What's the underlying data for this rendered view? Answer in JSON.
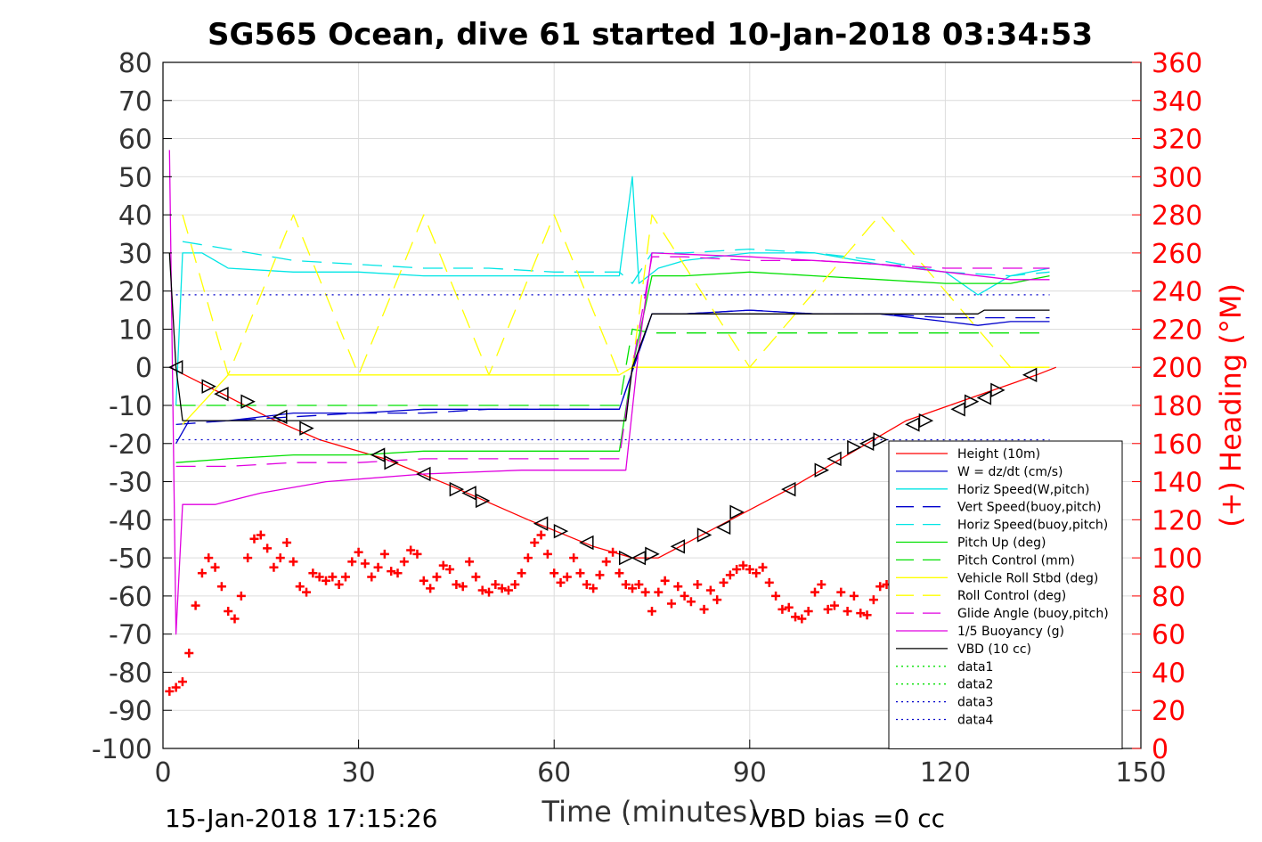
{
  "chart_data": {
    "type": "line",
    "title": "SG565 Ocean, dive 61 started 10-Jan-2018 03:34:53",
    "xlabel": "Time (minutes)",
    "ylabel": "",
    "y2label": "(+) Heading (°M)",
    "xlim": [
      0,
      150
    ],
    "ylim": [
      -100,
      80
    ],
    "y2lim": [
      0,
      360
    ],
    "xticks": [
      0,
      30,
      60,
      90,
      120,
      150
    ],
    "yticks": [
      -100,
      -90,
      -80,
      -70,
      -60,
      -50,
      -40,
      -30,
      -20,
      -10,
      0,
      10,
      20,
      30,
      40,
      50,
      60,
      70,
      80
    ],
    "y2ticks": [
      0,
      20,
      40,
      60,
      80,
      100,
      120,
      140,
      160,
      180,
      200,
      220,
      240,
      260,
      280,
      300,
      320,
      340,
      360
    ],
    "grid": true,
    "legend_position": "bottom-right",
    "footer_left": "15-Jan-2018 17:15:26",
    "footer_right": "VBD bias =0 cc",
    "series": [
      {
        "name": "Height (10m)",
        "color": "#ff0000",
        "style": "solid",
        "x": [
          1,
          8,
          16,
          24,
          34,
          44,
          56,
          66,
          72,
          76,
          86,
          96,
          106,
          114,
          124,
          134,
          137
        ],
        "y": [
          0,
          -6,
          -13,
          -19,
          -24,
          -31,
          -40,
          -47,
          -50,
          -50,
          -41,
          -32,
          -22,
          -14,
          -8,
          -2,
          0
        ]
      },
      {
        "name": "W = dz/dt (cm/s)",
        "color": "#0000cc",
        "style": "solid",
        "x": [
          2,
          4,
          10,
          20,
          30,
          40,
          50,
          60,
          70,
          72,
          75,
          80,
          90,
          100,
          110,
          120,
          125,
          130,
          136
        ],
        "y": [
          -20,
          -14,
          -14,
          -12,
          -12,
          -11,
          -11,
          -11,
          -11,
          -1,
          14,
          14,
          15,
          14,
          14,
          12,
          11,
          12,
          12
        ]
      },
      {
        "name": "Horiz Speed(W,pitch)",
        "color": "#00e5e5",
        "style": "solid",
        "x": [
          2,
          3,
          6,
          10,
          20,
          30,
          40,
          50,
          60,
          70,
          72,
          73,
          76,
          80,
          90,
          100,
          110,
          120,
          125,
          130,
          136
        ],
        "y": [
          -10,
          30,
          30,
          26,
          25,
          25,
          24,
          24,
          24,
          24,
          50,
          22,
          26,
          28,
          30,
          30,
          27,
          25,
          19,
          24,
          26
        ]
      },
      {
        "name": "Vert Speed(buoy,pitch)",
        "color": "#0000cc",
        "style": "dashed",
        "x": [
          2,
          10,
          20,
          30,
          40,
          50,
          60,
          70,
          72,
          75,
          80,
          90,
          100,
          110,
          120,
          130,
          136
        ],
        "y": [
          -15,
          -14,
          -13,
          -12,
          -12,
          -11,
          -11,
          -11,
          -1,
          14,
          14,
          15,
          14,
          14,
          13,
          13,
          13
        ]
      },
      {
        "name": "Horiz Speed(buoy,pitch)",
        "color": "#00e5e5",
        "style": "dashed",
        "x": [
          3,
          10,
          20,
          30,
          40,
          50,
          60,
          70,
          72,
          75,
          80,
          90,
          100,
          110,
          120,
          130,
          136
        ],
        "y": [
          33,
          31,
          28,
          27,
          26,
          26,
          25,
          25,
          22,
          30,
          30,
          31,
          30,
          28,
          25,
          24,
          25
        ]
      },
      {
        "name": "Pitch Up (deg)",
        "color": "#00e000",
        "style": "solid",
        "x": [
          2,
          10,
          20,
          30,
          40,
          50,
          60,
          70,
          72,
          75,
          80,
          90,
          100,
          110,
          120,
          130,
          136
        ],
        "y": [
          -25,
          -24,
          -23,
          -23,
          -22,
          -22,
          -22,
          -22,
          0,
          24,
          24,
          25,
          24,
          23,
          22,
          22,
          24
        ]
      },
      {
        "name": "Pitch Control (mm)",
        "color": "#00e000",
        "style": "dashed",
        "x": [
          2,
          10,
          30,
          50,
          70,
          72,
          75,
          90,
          110,
          130,
          136
        ],
        "y": [
          -10,
          -10,
          -10,
          -10,
          -10,
          10,
          9,
          9,
          9,
          9,
          9
        ]
      },
      {
        "name": "Vehicle Roll Stbd (deg)",
        "color": "#ffff00",
        "style": "solid",
        "x": [
          3,
          10,
          20,
          30,
          40,
          50,
          60,
          70,
          72,
          75,
          80,
          90,
          100,
          110,
          120,
          130,
          136
        ],
        "y": [
          -15,
          -2,
          -2,
          -2,
          -2,
          -2,
          -2,
          -2,
          0,
          0,
          0,
          0,
          0,
          0,
          0,
          0,
          0
        ]
      },
      {
        "name": "Roll Control (deg)",
        "color": "#ffff00",
        "style": "dashed",
        "x": [
          3,
          10,
          20,
          30,
          40,
          50,
          60,
          70,
          72,
          75,
          90,
          110,
          130,
          136
        ],
        "y": [
          40,
          -2,
          40,
          -2,
          40,
          -2,
          40,
          -2,
          0,
          40,
          0,
          40,
          0,
          0
        ]
      },
      {
        "name": "Glide Angle (buoy,pitch)",
        "color": "#e000e0",
        "style": "dashed",
        "x": [
          2,
          10,
          20,
          30,
          40,
          50,
          60,
          70,
          72,
          75,
          80,
          90,
          100,
          110,
          120,
          130,
          136
        ],
        "y": [
          -26,
          -26,
          -25,
          -25,
          -24,
          -24,
          -24,
          -24,
          0,
          29,
          29,
          28,
          28,
          27,
          26,
          26,
          26
        ]
      },
      {
        "name": "1/5 Buoyancy (g)",
        "color": "#e000e0",
        "style": "solid",
        "x": [
          1,
          2,
          3,
          8,
          15,
          25,
          40,
          55,
          70,
          71,
          73,
          75,
          90,
          110,
          130,
          136
        ],
        "y": [
          57,
          -70,
          -36,
          -36,
          -33,
          -30,
          -28,
          -27,
          -27,
          -27,
          5,
          30,
          29,
          27,
          23,
          23
        ]
      },
      {
        "name": "VBD (10 cc)",
        "color": "#000000",
        "style": "solid",
        "x": [
          1,
          2,
          3,
          20,
          40,
          60,
          70,
          71,
          72,
          75,
          80,
          100,
          110,
          125,
          126,
          136
        ],
        "y": [
          30,
          0,
          -14,
          -14,
          -14,
          -14,
          -14,
          -14,
          0,
          14,
          14,
          14,
          14,
          14,
          15,
          15
        ]
      },
      {
        "name": "data1",
        "color": "#00e000",
        "style": "dotted",
        "x": [],
        "y": []
      },
      {
        "name": "data2",
        "color": "#00e000",
        "style": "dotted",
        "x": [],
        "y": []
      },
      {
        "name": "data3",
        "color": "#0000cc",
        "style": "dotted",
        "x": [
          2,
          136
        ],
        "y": [
          19,
          19
        ]
      },
      {
        "name": "data4",
        "color": "#0000cc",
        "style": "dotted",
        "x": [
          2,
          136
        ],
        "y": [
          -19,
          -19
        ]
      }
    ],
    "heading": {
      "color": "#ff0000",
      "marker": "+",
      "axis": "right",
      "x": [
        1,
        2,
        3,
        4,
        5,
        6,
        7,
        8,
        9,
        10,
        11,
        12,
        13,
        14,
        15,
        16,
        17,
        18,
        19,
        20,
        21,
        22,
        23,
        24,
        25,
        26,
        27,
        28,
        29,
        30,
        31,
        32,
        33,
        34,
        35,
        36,
        37,
        38,
        39,
        40,
        41,
        42,
        43,
        44,
        45,
        46,
        47,
        48,
        49,
        50,
        51,
        52,
        53,
        54,
        55,
        56,
        57,
        58,
        59,
        60,
        61,
        62,
        63,
        64,
        65,
        66,
        67,
        68,
        69,
        70,
        71,
        72,
        73,
        74,
        75,
        76,
        77,
        78,
        79,
        80,
        81,
        82,
        83,
        84,
        85,
        86,
        87,
        88,
        89,
        90,
        91,
        92,
        93,
        94,
        95,
        96,
        97,
        98,
        99,
        100,
        101,
        102,
        103,
        104,
        105,
        106,
        107,
        108,
        109,
        110,
        111
      ],
      "y": [
        30,
        32,
        35,
        50,
        75,
        92,
        100,
        95,
        85,
        72,
        68,
        80,
        100,
        110,
        112,
        105,
        95,
        100,
        108,
        98,
        85,
        82,
        92,
        90,
        88,
        90,
        86,
        90,
        98,
        103,
        97,
        90,
        95,
        102,
        93,
        92,
        98,
        104,
        102,
        88,
        84,
        90,
        96,
        94,
        86,
        85,
        98,
        90,
        83,
        82,
        86,
        84,
        83,
        86,
        92,
        100,
        108,
        112,
        102,
        92,
        87,
        90,
        100,
        92,
        86,
        84,
        91,
        98,
        103,
        92,
        86,
        84,
        86,
        82,
        72,
        82,
        88,
        76,
        85,
        80,
        77,
        86,
        73,
        83,
        78,
        87,
        91,
        94,
        96,
        94,
        92,
        95,
        87,
        80,
        73,
        74,
        69,
        68,
        72,
        82,
        86,
        73,
        75,
        82,
        72,
        80,
        71,
        70,
        78,
        85,
        86
      ]
    },
    "turn_markers": {
      "color": "#000000",
      "marker": "triangle",
      "x": [
        2,
        7,
        9,
        13,
        18,
        22,
        33,
        35,
        40,
        45,
        47,
        49,
        58,
        61,
        65,
        71,
        73,
        75,
        79,
        83,
        86,
        88,
        96,
        101,
        103,
        106,
        108,
        110,
        115,
        117,
        122,
        124,
        126,
        128,
        133
      ],
      "y": [
        0,
        -5,
        -7,
        -9,
        -13,
        -16,
        -23,
        -25,
        -28,
        -32,
        -33,
        -35,
        -41,
        -43,
        -46,
        -50,
        -50,
        -49,
        -47,
        -44,
        -42,
        -38,
        -32,
        -27,
        -24,
        -21,
        -20,
        -19,
        -15,
        -14,
        -11,
        -9,
        -8,
        -6,
        -2
      ]
    }
  }
}
